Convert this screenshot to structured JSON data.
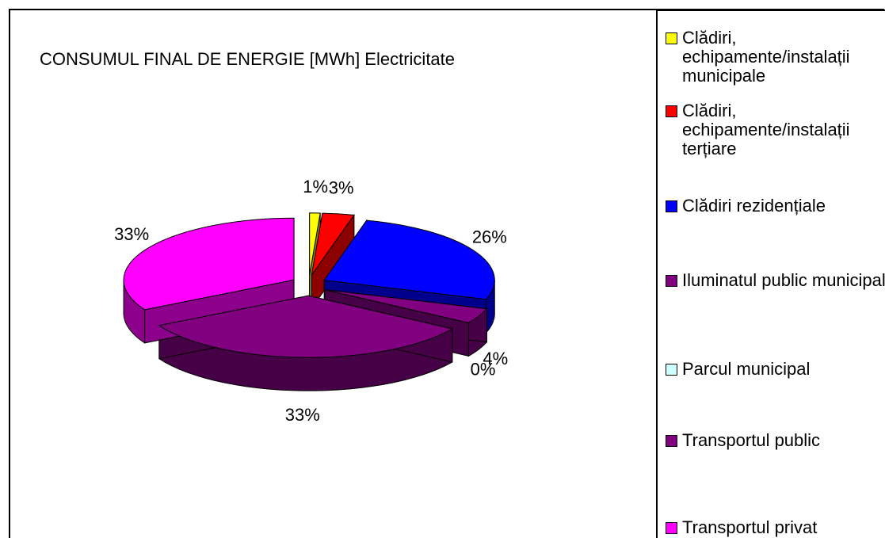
{
  "chart_data": {
    "type": "pie3d",
    "title": "CONSUMUL FINAL DE ENERGIE [MWh] Electricitate",
    "categories": [
      "Clădiri, echipamente/instalații municipale",
      "Clădiri, echipamente/instalații terțiare",
      "Clădiri rezidențiale",
      "Iluminatul public municipal",
      "Parcul municipal",
      "Transportul public",
      "Transportul privat"
    ],
    "values": [
      1,
      3,
      26,
      4,
      0,
      33,
      33
    ],
    "value_labels": [
      "1%",
      "3%",
      "26%",
      "4%",
      "0%",
      "33%",
      "33%"
    ],
    "colors": [
      "#ffff00",
      "#ff0000",
      "#0000ff",
      "#800080",
      "#ccffff",
      "#800080",
      "#ff00ff"
    ],
    "legend": "right"
  }
}
